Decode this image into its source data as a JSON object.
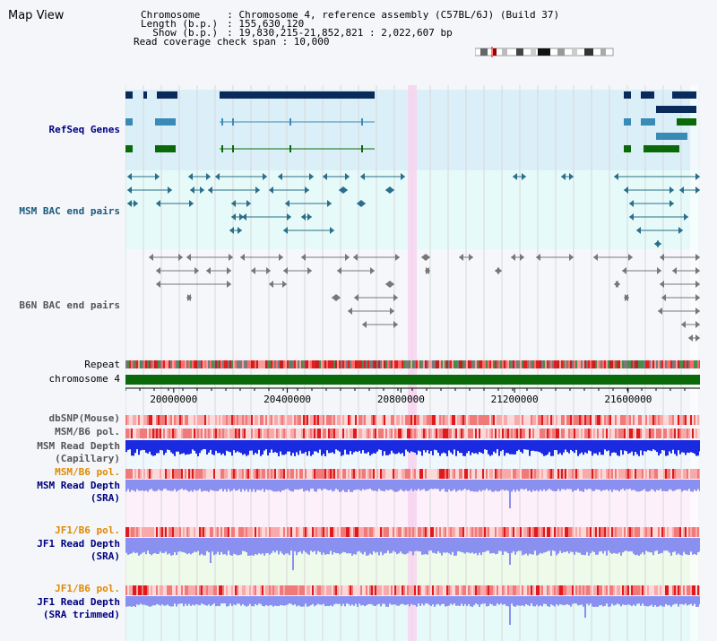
{
  "page": {
    "title": "Map View"
  },
  "header": {
    "chromosome_key": "Chromosome",
    "chromosome_val": ": Chromosome 4, reference assembly (C57BL/6J) (Build 37)",
    "length_key": "Length (b.p.)",
    "length_val": ": 155,630,120",
    "show_key": "  Show (b.p.)",
    "show_val": ": 19,830,215-21,852,821 : 2,022,607 bp",
    "coverage": "Read coverage check span : 10,000"
  },
  "tracks": {
    "refseq": "RefSeq Genes",
    "msm_bac": "MSM BAC end pairs",
    "b6n_bac": "B6N BAC end pairs",
    "repeat": "Repeat",
    "chromosome": "chromosome 4",
    "dbsnp": "dbSNP(Mouse)",
    "msm_b6_pol_1": "MSM/B6 pol.",
    "msm_depth_cap": "MSM Read Depth\n(Capillary)",
    "msm_b6_pol_2": "MSM/B6 pol.",
    "msm_depth_sra": "MSM Read Depth\n(SRA)",
    "jf1_b6_pol_1": "JF1/B6 pol.",
    "jf1_depth_sra": "JF1 Read Depth\n(SRA)",
    "jf1_b6_pol_2": "JF1/B6 pol.",
    "jf1_depth_trim": "JF1 Read Depth\n(SRA trimmed)"
  },
  "axis": {
    "ticks": [
      {
        "label": "20000000",
        "pos": 20000000
      },
      {
        "label": "20400000",
        "pos": 20400000
      },
      {
        "label": "20800000",
        "pos": 20800000
      },
      {
        "label": "21200000",
        "pos": 21200000
      },
      {
        "label": "21600000",
        "pos": 21600000
      }
    ],
    "range": [
      19830215,
      21852821
    ]
  },
  "colors": {
    "refseq_bg": "#dbeff9",
    "msm_bg": "#e6fafa",
    "b6n_bg": "#f6f7fb",
    "highlight": "#f7d4ef",
    "gene_dark": "#0a2a5a",
    "gene_mid": "#3a8ab8",
    "gene_green": "#0a6a0a",
    "msm_bac": "#2a6e8a",
    "b6n_bac": "#777777",
    "chromosome_bar": "#0a6a0a",
    "depth_cap": "#1a2ae0",
    "depth_sra": "#8a90f0",
    "label_blue": "#00007f",
    "label_orange": "#e08a00",
    "label_teal": "#1a5a7a"
  }
}
